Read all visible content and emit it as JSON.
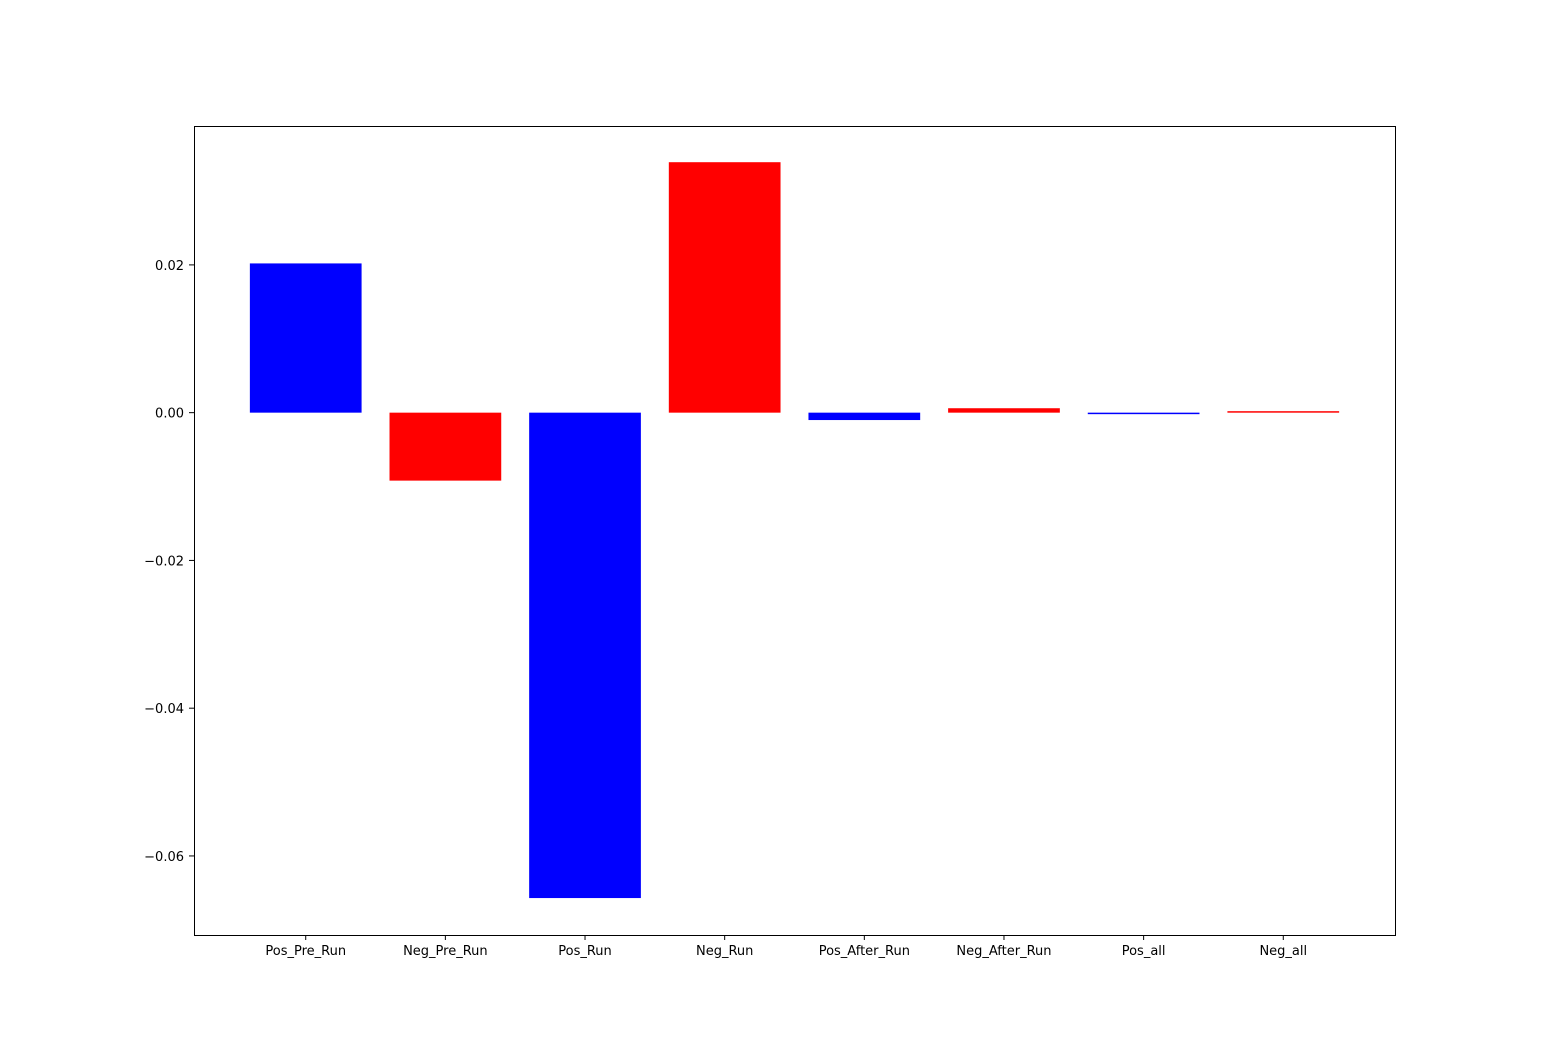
{
  "chart_data": {
    "type": "bar",
    "title": "",
    "xlabel": "",
    "ylabel": "",
    "categories": [
      "Pos_Pre_Run",
      "Neg_Pre_Run",
      "Pos_Run",
      "Neg_Run",
      "Pos_After_Run",
      "Neg_After_Run",
      "Pos_all",
      "Neg_all"
    ],
    "values": [
      0.0202,
      -0.0092,
      -0.0657,
      0.0339,
      -0.001,
      0.0006,
      -0.0002,
      0.0002
    ],
    "bar_colors": [
      "#0000ff",
      "#ff0000",
      "#0000ff",
      "#ff0000",
      "#0000ff",
      "#ff0000",
      "#0000ff",
      "#ff0000"
    ],
    "ylim": [
      -0.0707,
      0.0388
    ],
    "yticks": [
      0.02,
      0.0,
      -0.02,
      -0.04,
      -0.06
    ],
    "ytick_labels": [
      "0.02",
      "0.00",
      "−0.02",
      "−0.04",
      "−0.06"
    ],
    "grid": false,
    "legend": "none"
  }
}
